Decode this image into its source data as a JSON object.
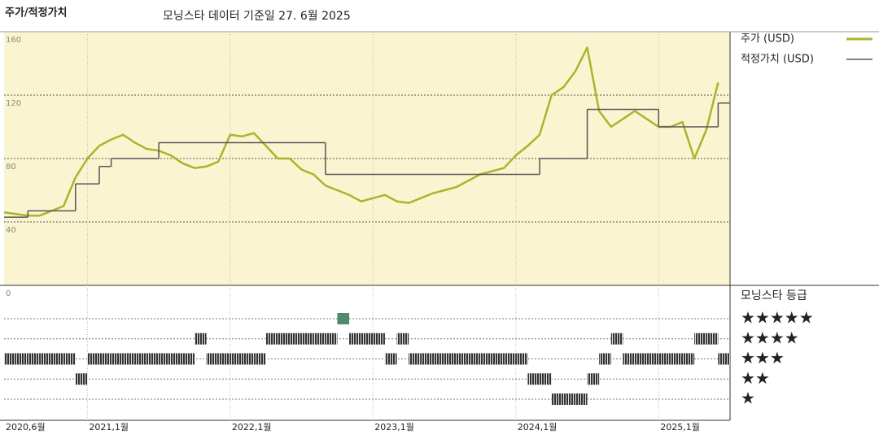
{
  "title": "주가/적정가치",
  "subtitle": "모닝스타 데이터 기준일 27. 6월 2025",
  "chart_data": {
    "type": "line",
    "x": [
      "2020-06",
      "2020-07",
      "2020-08",
      "2020-09",
      "2020-10",
      "2020-11",
      "2020-12",
      "2021-01",
      "2021-02",
      "2021-03",
      "2021-04",
      "2021-05",
      "2021-06",
      "2021-07",
      "2021-08",
      "2021-09",
      "2021-10",
      "2021-11",
      "2021-12",
      "2022-01",
      "2022-02",
      "2022-03",
      "2022-04",
      "2022-05",
      "2022-06",
      "2022-07",
      "2022-08",
      "2022-09",
      "2022-10",
      "2022-11",
      "2022-12",
      "2023-01",
      "2023-02",
      "2023-03",
      "2023-04",
      "2023-05",
      "2023-06",
      "2023-07",
      "2023-08",
      "2023-09",
      "2023-10",
      "2023-11",
      "2023-12",
      "2024-01",
      "2024-02",
      "2024-03",
      "2024-04",
      "2024-05",
      "2024-06",
      "2024-07",
      "2024-08",
      "2024-09",
      "2024-10",
      "2024-11",
      "2024-12",
      "2025-01",
      "2025-02",
      "2025-03",
      "2025-04",
      "2025-05",
      "2025-06"
    ],
    "xlim": [
      "2020-06",
      "2025-07"
    ],
    "xticks": [
      {
        "value": "2020-06",
        "label": "2020,6월"
      },
      {
        "value": "2021-01",
        "label": "2021,1월"
      },
      {
        "value": "2022-01",
        "label": "2022,1월"
      },
      {
        "value": "2023-01",
        "label": "2023,1월"
      },
      {
        "value": "2024-01",
        "label": "2024,1월"
      },
      {
        "value": "2025-01",
        "label": "2025,1월"
      }
    ],
    "ylim": [
      0,
      160
    ],
    "yticks": [
      0,
      40,
      80,
      120,
      160
    ],
    "series": [
      {
        "name": "주가 (USD)",
        "color": "#aab42c",
        "values": [
          46,
          45,
          44,
          44,
          47,
          50,
          68,
          80,
          88,
          92,
          95,
          90,
          86,
          85,
          82,
          77,
          74,
          75,
          78,
          95,
          94,
          96,
          88,
          80,
          80,
          73,
          70,
          63,
          60,
          57,
          53,
          55,
          57,
          53,
          52,
          55,
          58,
          60,
          62,
          66,
          70,
          72,
          74,
          82,
          88,
          95,
          120,
          125,
          135,
          150,
          110,
          100,
          105,
          110,
          105,
          100,
          100,
          103,
          80,
          98,
          128
        ]
      },
      {
        "name": "적정가치 (USD)",
        "color": "#555555",
        "step": true,
        "values": [
          43,
          43,
          47,
          47,
          47,
          47,
          64,
          64,
          75,
          80,
          80,
          80,
          80,
          90,
          90,
          90,
          90,
          90,
          90,
          90,
          90,
          90,
          90,
          90,
          90,
          90,
          90,
          70,
          70,
          70,
          70,
          70,
          70,
          70,
          70,
          70,
          70,
          70,
          70,
          70,
          70,
          70,
          70,
          70,
          70,
          80,
          80,
          80,
          80,
          111,
          111,
          111,
          111,
          111,
          111,
          100,
          100,
          100,
          100,
          100,
          115
        ]
      }
    ],
    "rating": {
      "title": "모닝스타 등급",
      "labels": [
        "★",
        "★★",
        "★★★",
        "★★★★",
        "★★★★★"
      ],
      "color": "#3a3a3a",
      "five_star_color": "#4f8a6e",
      "values": [
        3,
        3,
        3,
        3,
        3,
        3,
        2,
        3,
        3,
        3,
        3,
        3,
        3,
        3,
        3,
        3,
        4,
        3,
        3,
        3,
        3,
        3,
        4,
        4,
        4,
        4,
        4,
        4,
        5,
        4,
        4,
        4,
        3,
        4,
        3,
        3,
        3,
        3,
        3,
        3,
        3,
        3,
        3,
        3,
        2,
        2,
        1,
        1,
        1,
        2,
        3,
        4,
        3,
        3,
        3,
        3,
        3,
        3,
        4,
        4,
        3
      ]
    }
  }
}
